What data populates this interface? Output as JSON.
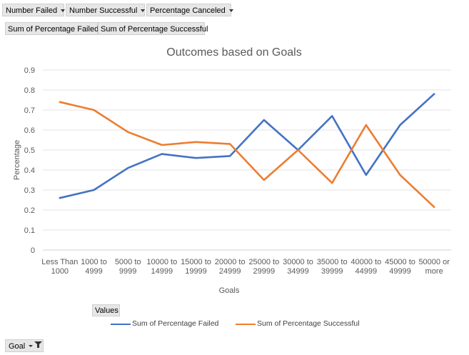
{
  "pivot": {
    "filter_fields": [
      "Number Failed",
      "Number Successful",
      "Percentage Canceled"
    ],
    "value_fields": [
      "Sum of Percentage Failed",
      "Sum of Percentage Successful"
    ],
    "values_button": "Values",
    "axis_field": "Goal"
  },
  "chart_data": {
    "type": "line",
    "title": "Outcomes based on Goals",
    "xlabel": "Goals",
    "ylabel": "Percentage",
    "categories": [
      [
        "Less Than",
        "1000"
      ],
      [
        "1000 to",
        "4999"
      ],
      [
        "5000 to",
        "9999"
      ],
      [
        "10000 to",
        "14999"
      ],
      [
        "15000 to",
        "19999"
      ],
      [
        "20000 to",
        "24999"
      ],
      [
        "25000 to",
        "29999"
      ],
      [
        "30000 to",
        "34999"
      ],
      [
        "35000 to",
        "39999"
      ],
      [
        "40000 to",
        "44999"
      ],
      [
        "45000 to",
        "49999"
      ],
      [
        "50000 or",
        "more"
      ]
    ],
    "yticks": [
      "0",
      "0.1",
      "0.2",
      "0.3",
      "0.4",
      "0.5",
      "0.6",
      "0.7",
      "0.8",
      "0.9"
    ],
    "ylim": [
      0,
      0.9
    ],
    "grid": true,
    "legend_position": "bottom",
    "series": [
      {
        "name": "Sum of Percentage Failed",
        "color": "#4472c4",
        "values": [
          0.26,
          0.3,
          0.41,
          0.48,
          0.46,
          0.47,
          0.65,
          0.5,
          0.67,
          0.375,
          0.625,
          0.78
        ]
      },
      {
        "name": "Sum of Percentage Successful",
        "color": "#ed7d31",
        "values": [
          0.74,
          0.7,
          0.59,
          0.525,
          0.54,
          0.53,
          0.35,
          0.5,
          0.335,
          0.625,
          0.375,
          0.215
        ]
      }
    ]
  }
}
